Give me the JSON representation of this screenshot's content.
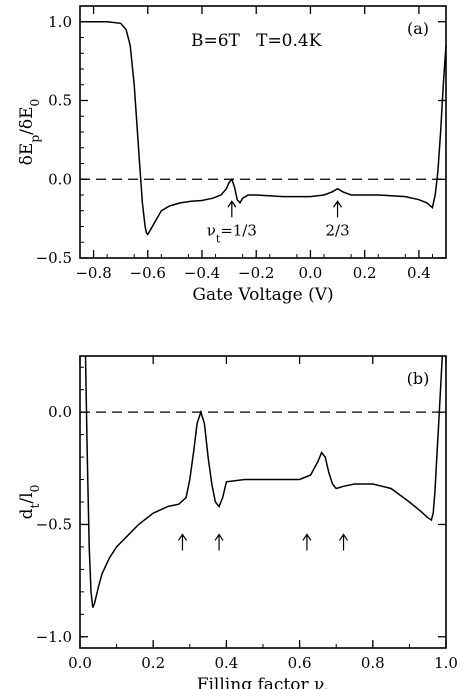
{
  "chart_data": [
    {
      "type": "line",
      "panel_label": "(a)",
      "condition_text": "B=6T   T=0.4K",
      "xlabel": "Gate Voltage (V)",
      "ylabel": "δE_p/δE_0",
      "xlim": [
        -0.85,
        0.5
      ],
      "ylim": [
        -0.5,
        1.1
      ],
      "x_ticks": [
        -0.8,
        -0.6,
        -0.4,
        -0.2,
        0.0,
        0.2,
        0.4
      ],
      "x_tick_labels": [
        "−0.8",
        "−0.6",
        "−0.4",
        "−0.2",
        "0.0",
        "0.2",
        "0.4"
      ],
      "y_ticks": [
        -0.5,
        0.0,
        0.5,
        1.0
      ],
      "y_tick_labels": [
        "−0.5",
        "0.0",
        "0.5",
        "1.0"
      ],
      "reference_line_y": 0.0,
      "grid": false,
      "series": [
        {
          "x": [
            -0.85,
            -0.75,
            -0.7,
            -0.68,
            -0.665,
            -0.65,
            -0.64,
            -0.63,
            -0.62,
            -0.61,
            -0.605,
            -0.6,
            -0.59,
            -0.57,
            -0.55,
            -0.52,
            -0.48,
            -0.44,
            -0.4,
            -0.36,
            -0.33,
            -0.31,
            -0.3,
            -0.29,
            -0.28,
            -0.27,
            -0.26,
            -0.25,
            -0.23,
            -0.2,
            -0.1,
            0.0,
            0.05,
            0.08,
            0.1,
            0.12,
            0.15,
            0.25,
            0.35,
            0.4,
            0.43,
            0.45,
            0.46,
            0.47,
            0.48,
            0.49,
            0.5
          ],
          "y": [
            1.0,
            1.0,
            0.99,
            0.95,
            0.85,
            0.6,
            0.35,
            0.1,
            -0.15,
            -0.3,
            -0.34,
            -0.35,
            -0.32,
            -0.26,
            -0.2,
            -0.17,
            -0.15,
            -0.14,
            -0.135,
            -0.12,
            -0.1,
            -0.06,
            -0.02,
            0.0,
            -0.05,
            -0.13,
            -0.15,
            -0.12,
            -0.1,
            -0.1,
            -0.11,
            -0.11,
            -0.1,
            -0.08,
            -0.06,
            -0.08,
            -0.1,
            -0.1,
            -0.11,
            -0.13,
            -0.15,
            -0.18,
            -0.1,
            0.05,
            0.3,
            0.6,
            0.85
          ]
        }
      ],
      "annotations": [
        {
          "text": "ν_t=1/3",
          "x": -0.29
        },
        {
          "text": "2/3",
          "x": 0.1
        }
      ]
    },
    {
      "type": "line",
      "panel_label": "(b)",
      "xlabel": "Filling factor ν_t",
      "ylabel": "d_t/l_0",
      "xlim": [
        0.0,
        1.0
      ],
      "ylim": [
        -1.05,
        0.25
      ],
      "x_ticks": [
        0.0,
        0.2,
        0.4,
        0.6,
        0.8,
        1.0
      ],
      "x_tick_labels": [
        "0.0",
        "0.2",
        "0.4",
        "0.6",
        "0.8",
        "1.0"
      ],
      "y_ticks": [
        -1.0,
        -0.5,
        0.0
      ],
      "y_tick_labels": [
        "−1.0",
        "−0.5",
        "0.0"
      ],
      "reference_line_y": 0.0,
      "grid": false,
      "series": [
        {
          "x": [
            0.015,
            0.02,
            0.025,
            0.03,
            0.035,
            0.04,
            0.05,
            0.06,
            0.08,
            0.1,
            0.13,
            0.16,
            0.2,
            0.24,
            0.27,
            0.29,
            0.3,
            0.31,
            0.32,
            0.33,
            0.34,
            0.35,
            0.36,
            0.37,
            0.38,
            0.39,
            0.4,
            0.45,
            0.5,
            0.55,
            0.6,
            0.63,
            0.65,
            0.66,
            0.67,
            0.68,
            0.69,
            0.7,
            0.72,
            0.75,
            0.8,
            0.85,
            0.9,
            0.93,
            0.95,
            0.96,
            0.965,
            0.97,
            0.975,
            0.98,
            0.985,
            0.99
          ],
          "y": [
            0.25,
            -0.2,
            -0.6,
            -0.8,
            -0.87,
            -0.85,
            -0.78,
            -0.72,
            -0.65,
            -0.6,
            -0.55,
            -0.5,
            -0.45,
            -0.42,
            -0.41,
            -0.38,
            -0.3,
            -0.18,
            -0.05,
            0.0,
            -0.05,
            -0.2,
            -0.32,
            -0.4,
            -0.42,
            -0.38,
            -0.31,
            -0.3,
            -0.3,
            -0.3,
            -0.3,
            -0.28,
            -0.22,
            -0.18,
            -0.2,
            -0.27,
            -0.32,
            -0.34,
            -0.33,
            -0.32,
            -0.32,
            -0.34,
            -0.4,
            -0.44,
            -0.47,
            -0.48,
            -0.45,
            -0.35,
            -0.2,
            -0.05,
            0.1,
            0.25
          ]
        }
      ],
      "arrows_x": [
        0.28,
        0.38,
        0.62,
        0.72
      ]
    }
  ]
}
